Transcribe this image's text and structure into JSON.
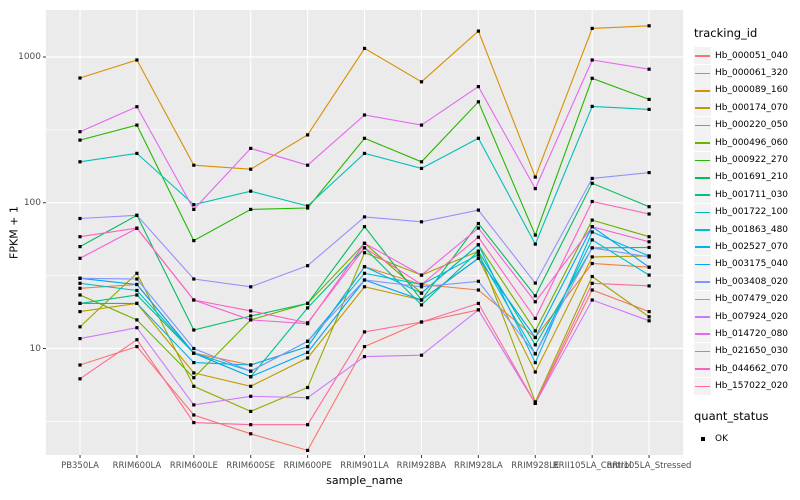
{
  "axes": {
    "y_title": "FPKM + 1",
    "x_title": "sample_name",
    "y_ticks": [
      {
        "label": "1000",
        "value": 1000
      },
      {
        "label": "100",
        "value": 100
      },
      {
        "label": "10",
        "value": 10
      }
    ]
  },
  "legend": {
    "tracking_title": "tracking_id",
    "quant_title": "quant_status",
    "quant_label": "OK"
  },
  "style": {
    "panel_bg": "#EBEBEB",
    "grid_color": "#FFFFFF",
    "point_color": "#000000",
    "tick_color": "#333333"
  },
  "chart_data": {
    "type": "line",
    "xlabel": "sample_name",
    "ylabel": "FPKM + 1",
    "yscale": "log10",
    "ylim": [
      2,
      2100
    ],
    "grid": true,
    "legend_position": "right",
    "point_shape": "small black square (quant_status OK)",
    "categories": [
      "PB350LA",
      "RRIM600LA",
      "RRIM600LE",
      "RRIM600SE",
      "RRIM600PE",
      "RRIM901LA",
      "RRIM928BA",
      "RRIM928LA",
      "RRIM928LE",
      "RRII105LA_Control",
      "RRII105LA_Stressed"
    ],
    "series": [
      {
        "name": "Hb_000051_040",
        "color": "#F8766D",
        "values": [
          7.7,
          10.3,
          3.5,
          2.6,
          2.0,
          10.3,
          15.2,
          18.4,
          4.2,
          25.2,
          17.9
        ]
      },
      {
        "name": "Hb_000061_320",
        "color": "#EC823C",
        "values": [
          25.9,
          27.5,
          9.3,
          7.7,
          10.3,
          36.4,
          27.5,
          25.2,
          11.9,
          38.3,
          36.1
        ]
      },
      {
        "name": "Hb_000089_160",
        "color": "#D89000",
        "values": [
          718,
          953,
          181,
          170,
          292,
          1146,
          676,
          1505,
          150,
          1570,
          1638
        ]
      },
      {
        "name": "Hb_000174_070",
        "color": "#BE9C00",
        "values": [
          17.9,
          20.4,
          6.8,
          5.5,
          8.6,
          26.5,
          21.5,
          41.6,
          6.9,
          42.5,
          43.1
        ]
      },
      {
        "name": "Hb_000220_050",
        "color": "#9CA700",
        "values": [
          14.1,
          32.8,
          5.5,
          3.7,
          5.4,
          45.4,
          31.9,
          46.5,
          4.3,
          31.2,
          16.5
        ]
      },
      {
        "name": "Hb_000496_060",
        "color": "#6FB000",
        "values": [
          23.3,
          15.7,
          6.3,
          15.7,
          20.4,
          52.7,
          24.0,
          51.5,
          13.2,
          76,
          58.5
        ]
      },
      {
        "name": "Hb_000922_270",
        "color": "#24B700",
        "values": [
          269,
          341,
          55,
          90,
          92,
          277,
          191,
          493,
          60,
          714,
          512
        ]
      },
      {
        "name": "Hb_001691_210",
        "color": "#00BD5F",
        "values": [
          50,
          82,
          13.4,
          16.7,
          20.4,
          68.5,
          21.5,
          72,
          23,
          136,
          94
        ]
      },
      {
        "name": "Hb_001711_030",
        "color": "#00C08E",
        "values": [
          20.4,
          23.3,
          9.3,
          6.4,
          19,
          49,
          19.9,
          46.5,
          10.6,
          49,
          49.4
        ]
      },
      {
        "name": "Hb_001722_100",
        "color": "#00C0B4",
        "values": [
          191,
          218,
          97,
          120,
          95,
          218,
          172,
          277,
          52,
          458,
          437
        ]
      },
      {
        "name": "Hb_001863_480",
        "color": "#00BDD2",
        "values": [
          28,
          25,
          9.3,
          7.0,
          11.2,
          32.8,
          27.5,
          44,
          9.2,
          55.6,
          31.9
        ]
      },
      {
        "name": "Hb_002527_070",
        "color": "#00B4E8",
        "values": [
          20.4,
          20.4,
          8.0,
          7.7,
          10.3,
          36.4,
          24,
          51.5,
          8.0,
          63,
          43.1
        ]
      },
      {
        "name": "Hb_003175_040",
        "color": "#00A6F2",
        "values": [
          30.3,
          27.5,
          9.3,
          6.4,
          9.4,
          29.5,
          21.5,
          41.6,
          11.9,
          68.5,
          36.1
        ]
      },
      {
        "name": "Hb_003408_020",
        "color": "#7F96FF",
        "values": [
          30.3,
          30,
          10,
          7.0,
          11.2,
          29.5,
          26.5,
          28.9,
          9.2,
          49,
          42.5
        ]
      },
      {
        "name": "Hb_007479_020",
        "color": "#9590FF",
        "values": [
          78,
          82,
          30,
          26.5,
          37,
          80,
          74,
          89,
          28.1,
          147,
          161
        ]
      },
      {
        "name": "Hb_007924_020",
        "color": "#CF78FF",
        "values": [
          11.7,
          13.9,
          4.1,
          4.7,
          4.6,
          8.8,
          9.0,
          18.4,
          4.2,
          21.5,
          15.5
        ]
      },
      {
        "name": "Hb_014720_080",
        "color": "#E668F2",
        "values": [
          307,
          456,
          90,
          236,
          181,
          400,
          341,
          626,
          125,
          953,
          825
        ]
      },
      {
        "name": "Hb_021650_030",
        "color": "#F55EDC",
        "values": [
          41.6,
          66.8,
          21.5,
          15.7,
          14.8,
          52.7,
          31.9,
          67,
          20.9,
          68.5,
          54
        ]
      },
      {
        "name": "Hb_044662_070",
        "color": "#FD61C0",
        "values": [
          58.5,
          67,
          21.5,
          18.1,
          15,
          49,
          27.5,
          58,
          16.1,
          102,
          83.7
        ]
      },
      {
        "name": "Hb_157022_020",
        "color": "#FF689E",
        "values": [
          6.2,
          11.5,
          3.1,
          3.0,
          3.0,
          13.0,
          15.2,
          20.4,
          4.2,
          28,
          26.9
        ]
      }
    ]
  }
}
